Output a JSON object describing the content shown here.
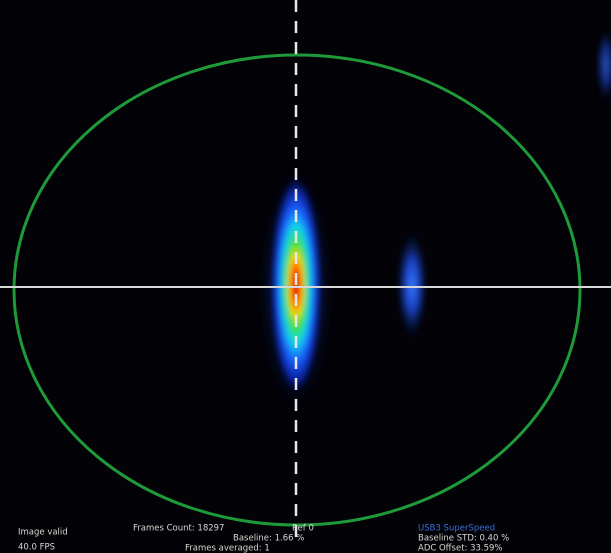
{
  "status": {
    "image_state": "Image valid",
    "fps": "40.0 FPS",
    "frames_count": "Frames Count: 18297",
    "ref": "Ref 0",
    "baseline": "Baseline: 1.66 %",
    "frames_averaged": "Frames averaged: 1",
    "connection": "USB3 SuperSpeed",
    "baseline_std": "Baseline STD: 0.40 %",
    "adc_offset": "ADC Offset: 33.59%"
  }
}
